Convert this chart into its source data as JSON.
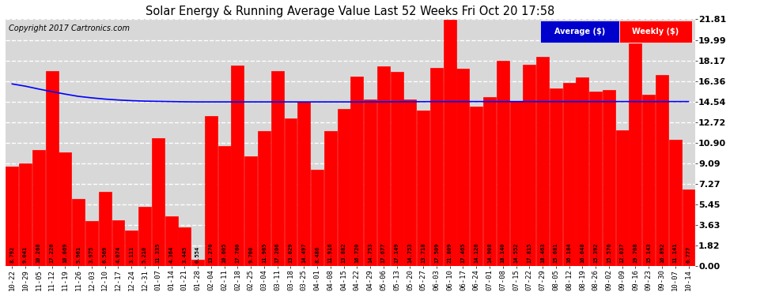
{
  "title": "Solar Energy & Running Average Value Last 52 Weeks Fri Oct 20 17:58",
  "copyright": "Copyright 2017 Cartronics.com",
  "bar_color": "#ff0000",
  "avg_line_color": "#0000ff",
  "background_color": "#ffffff",
  "plot_bg_color": "#d8d8d8",
  "grid_color": "#ffffff",
  "ylim": [
    0.0,
    21.81
  ],
  "yticks": [
    0.0,
    1.82,
    3.63,
    5.45,
    7.27,
    9.09,
    10.9,
    12.72,
    14.54,
    16.36,
    18.17,
    19.99,
    21.81
  ],
  "categories": [
    "10-22",
    "10-29",
    "11-05",
    "11-12",
    "11-19",
    "11-26",
    "12-03",
    "12-10",
    "12-17",
    "12-24",
    "12-31",
    "01-07",
    "01-14",
    "01-21",
    "01-28",
    "02-04",
    "02-11",
    "02-18",
    "02-25",
    "03-04",
    "03-11",
    "03-18",
    "03-25",
    "04-01",
    "04-08",
    "04-15",
    "04-22",
    "04-29",
    "05-06",
    "05-13",
    "05-20",
    "05-27",
    "06-03",
    "06-10",
    "06-17",
    "06-24",
    "07-01",
    "07-08",
    "07-15",
    "07-22",
    "07-29",
    "08-05",
    "08-12",
    "08-19",
    "08-26",
    "09-02",
    "09-09",
    "09-16",
    "09-23",
    "09-30",
    "10-07",
    "10-14"
  ],
  "values": [
    8.792,
    9.041,
    10.268,
    17.226,
    10.069,
    5.961,
    3.975,
    6.569,
    4.074,
    3.111,
    5.21,
    11.335,
    4.364,
    3.445,
    0.554,
    13.276,
    10.605,
    17.76,
    9.7,
    11.965,
    17.206,
    13.029,
    14.497,
    8.486,
    11.916,
    13.882,
    16.72,
    14.753,
    17.677,
    17.149,
    14.753,
    13.718,
    17.509,
    21.809,
    17.465,
    14.126,
    14.908,
    18.14,
    14.552,
    17.815,
    18.463,
    15.681,
    16.184,
    16.648,
    15.392,
    15.576,
    12.037,
    19.708,
    15.143,
    16.892,
    11.141,
    6.777
  ],
  "avg_values": [
    16.1,
    15.9,
    15.65,
    15.42,
    15.2,
    15.0,
    14.87,
    14.76,
    14.68,
    14.62,
    14.58,
    14.56,
    14.54,
    14.52,
    14.51,
    14.51,
    14.51,
    14.51,
    14.51,
    14.51,
    14.51,
    14.51,
    14.51,
    14.51,
    14.51,
    14.51,
    14.51,
    14.52,
    14.52,
    14.53,
    14.53,
    14.53,
    14.54,
    14.54,
    14.54,
    14.54,
    14.54,
    14.54,
    14.54,
    14.54,
    14.54,
    14.54,
    14.54,
    14.54,
    14.54,
    14.54,
    14.54,
    14.54,
    14.54,
    14.54,
    14.54,
    14.54
  ],
  "legend_avg_color": "#0000cd",
  "legend_weekly_color": "#ff0000",
  "legend_bg_color": "#000080",
  "label_color": "#000000",
  "value_label_color": "#000000"
}
